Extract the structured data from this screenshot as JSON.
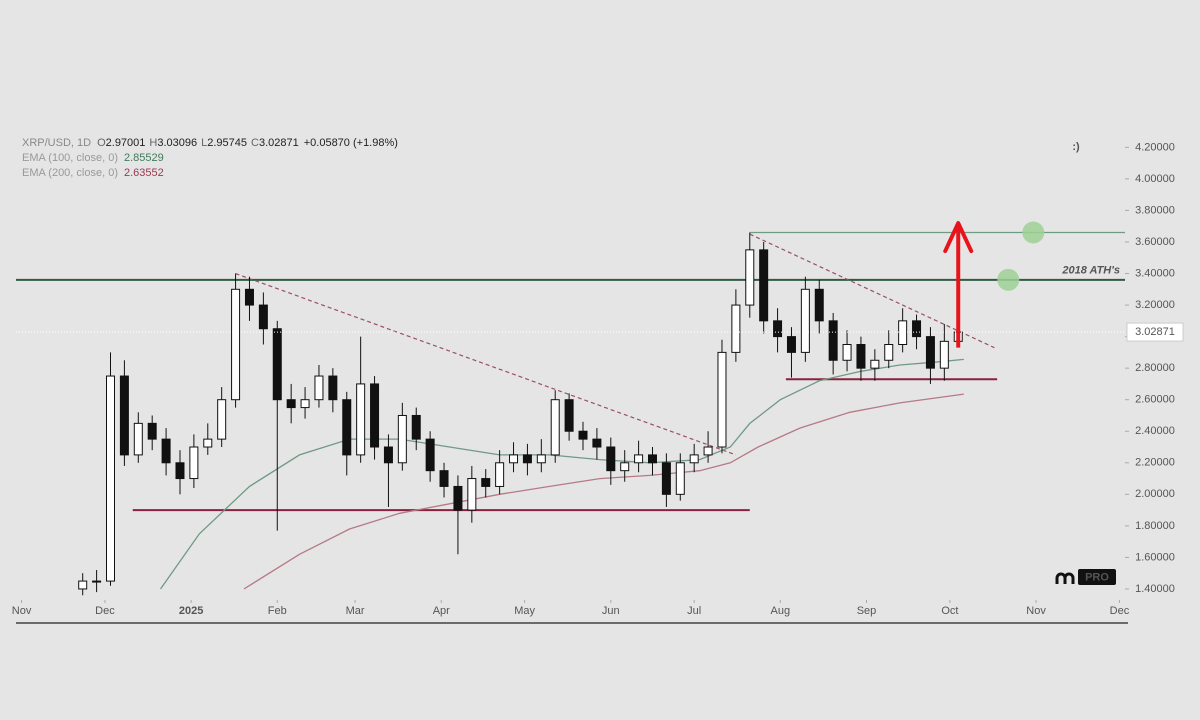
{
  "chart_data": {
    "type": "candlestick",
    "legend": {
      "symbol": "XRP/USD, 1D",
      "open_prefix": "O",
      "high_prefix": "H",
      "low_prefix": "L",
      "close_prefix": "C",
      "change": "+0.05870 (+1.98%)"
    },
    "candles": {
      "x": [
        22,
        27,
        32,
        37,
        42,
        47,
        52,
        57,
        62,
        67,
        72,
        77,
        82,
        87,
        92,
        97,
        102,
        107,
        112,
        117,
        122,
        127,
        132,
        137,
        142,
        147,
        152,
        157,
        162,
        167,
        172,
        177,
        182,
        187,
        192,
        197,
        202,
        207,
        212,
        217,
        222,
        227,
        232,
        237,
        242,
        247,
        252,
        257,
        262,
        267,
        272,
        277,
        282,
        287,
        292,
        297,
        302,
        307,
        312,
        317,
        322,
        327,
        332,
        337
      ],
      "open": [
        1.4,
        1.45,
        1.45,
        2.75,
        2.25,
        2.45,
        2.35,
        2.2,
        2.1,
        2.3,
        2.35,
        2.6,
        3.3,
        3.2,
        3.05,
        2.6,
        2.55,
        2.6,
        2.75,
        2.6,
        2.25,
        2.7,
        2.3,
        2.2,
        2.5,
        2.35,
        2.15,
        2.05,
        1.9,
        2.1,
        2.05,
        2.2,
        2.25,
        2.2,
        2.25,
        2.6,
        2.4,
        2.35,
        2.3,
        2.15,
        2.2,
        2.25,
        2.2,
        2.0,
        2.2,
        2.25,
        2.3,
        2.9,
        3.2,
        3.55,
        3.1,
        3.0,
        2.9,
        3.3,
        3.1,
        2.85,
        2.95,
        2.8,
        2.85,
        2.95,
        3.1,
        3.0,
        2.8,
        2.97001
      ],
      "high": [
        1.5,
        1.52,
        2.9,
        2.85,
        2.52,
        2.5,
        2.42,
        2.28,
        2.38,
        2.45,
        2.68,
        3.4,
        3.38,
        3.28,
        3.1,
        2.7,
        2.68,
        2.82,
        2.8,
        2.65,
        3.0,
        2.75,
        2.38,
        2.58,
        2.55,
        2.4,
        2.2,
        2.12,
        2.18,
        2.16,
        2.28,
        2.33,
        2.32,
        2.35,
        2.66,
        2.64,
        2.46,
        2.42,
        2.36,
        2.28,
        2.34,
        2.3,
        2.26,
        2.26,
        2.32,
        2.4,
        2.98,
        3.3,
        3.66,
        3.6,
        3.18,
        3.06,
        3.38,
        3.36,
        3.15,
        3.04,
        3.0,
        2.92,
        3.04,
        3.18,
        3.14,
        3.06,
        3.08,
        3.03096
      ],
      "low": [
        1.36,
        1.38,
        1.42,
        2.18,
        2.2,
        2.28,
        2.12,
        2.0,
        2.04,
        2.25,
        2.3,
        2.55,
        3.1,
        2.95,
        1.77,
        2.45,
        2.48,
        2.55,
        2.52,
        2.12,
        2.2,
        2.22,
        1.92,
        2.15,
        2.28,
        2.08,
        1.98,
        1.62,
        1.82,
        1.98,
        2.0,
        2.14,
        2.12,
        2.14,
        2.2,
        2.34,
        2.28,
        2.22,
        2.06,
        2.08,
        2.14,
        2.12,
        1.92,
        1.96,
        2.14,
        2.2,
        2.26,
        2.84,
        3.12,
        3.02,
        2.9,
        2.74,
        2.84,
        3.02,
        2.76,
        2.78,
        2.72,
        2.72,
        2.8,
        2.9,
        2.92,
        2.7,
        2.72,
        2.95745
      ],
      "close": [
        1.45,
        1.45,
        2.75,
        2.25,
        2.45,
        2.35,
        2.2,
        2.1,
        2.3,
        2.35,
        2.6,
        3.3,
        3.2,
        3.05,
        2.6,
        2.55,
        2.6,
        2.75,
        2.6,
        2.25,
        2.7,
        2.3,
        2.2,
        2.5,
        2.35,
        2.15,
        2.05,
        1.9,
        2.1,
        2.05,
        2.2,
        2.25,
        2.2,
        2.25,
        2.6,
        2.4,
        2.35,
        2.3,
        2.15,
        2.2,
        2.25,
        2.2,
        2.0,
        2.2,
        2.25,
        2.3,
        2.9,
        3.2,
        3.55,
        3.1,
        3.0,
        2.9,
        3.3,
        3.1,
        2.85,
        2.95,
        2.8,
        2.85,
        2.95,
        3.1,
        3.0,
        2.8,
        2.97,
        3.02871
      ],
      "up_color": "#ffffff",
      "down_color": "#111111"
    },
    "series": [
      {
        "name": "EMA (100, close, 0)",
        "color": "#6f9a84",
        "label_color": "#3e7d5a",
        "x": [
          50,
          64,
          82,
          100,
          118,
          136,
          154,
          172,
          190,
          208,
          226,
          244,
          255,
          262,
          273,
          287,
          302,
          316,
          330,
          339
        ],
        "values": [
          1.4,
          1.75,
          2.05,
          2.25,
          2.35,
          2.35,
          2.3,
          2.25,
          2.25,
          2.22,
          2.2,
          2.22,
          2.3,
          2.45,
          2.6,
          2.72,
          2.78,
          2.82,
          2.84,
          2.85529
        ]
      },
      {
        "name": "EMA (200, close, 0)",
        "color": "#b57a86",
        "label_color": "#9b3a4f",
        "x": [
          80,
          100,
          118,
          136,
          154,
          172,
          190,
          208,
          226,
          244,
          255,
          265,
          280,
          298,
          316,
          339
        ],
        "values": [
          1.4,
          1.62,
          1.78,
          1.88,
          1.94,
          2.0,
          2.05,
          2.1,
          2.12,
          2.15,
          2.2,
          2.3,
          2.42,
          2.52,
          2.58,
          2.63552
        ]
      }
    ],
    "levels": [
      {
        "value": 3.36,
        "x": [
          -2,
          397
        ],
        "color": "#2f5a45",
        "label": "2018 ATH's"
      },
      {
        "value": 3.66,
        "x": [
          262,
          397
        ],
        "color": "#6e9c82"
      },
      {
        "value": 1.9,
        "x": [
          40,
          262
        ],
        "color": "#8a2040"
      },
      {
        "value": 2.73,
        "x": [
          275,
          351
        ],
        "color": "#8a2040"
      }
    ],
    "trendlines": [
      {
        "x": [
          77,
          257
        ],
        "y": [
          3.4,
          2.25
        ],
        "color": "#9b5060"
      },
      {
        "x": [
          262,
          350
        ],
        "y": [
          3.65,
          2.93
        ],
        "color": "#9b5060"
      }
    ],
    "arrow": {
      "x": 337,
      "y": [
        2.93,
        3.72
      ],
      "color": "#e8141c"
    },
    "circles": {
      "x": [
        364,
        355
      ],
      "y": [
        3.66,
        3.36
      ],
      "color": "#9fd197"
    },
    "note": ":)",
    "brand": "PRO",
    "xlim": [
      -2,
      397
    ],
    "xticks": [
      {
        "value": 0,
        "label": "Nov"
      },
      {
        "value": 30,
        "label": "Dec"
      },
      {
        "value": 61,
        "label": "2025"
      },
      {
        "value": 92,
        "label": "Feb"
      },
      {
        "value": 120,
        "label": "Mar"
      },
      {
        "value": 151,
        "label": "Apr"
      },
      {
        "value": 181,
        "label": "May"
      },
      {
        "value": 212,
        "label": "Jun"
      },
      {
        "value": 242,
        "label": "Jul"
      },
      {
        "value": 273,
        "label": "Aug"
      },
      {
        "value": 304,
        "label": "Sep"
      },
      {
        "value": 334,
        "label": "Oct"
      },
      {
        "value": 365,
        "label": "Nov"
      },
      {
        "value": 395,
        "label": "Dec"
      }
    ],
    "ylim": [
      1.33,
      4.31
    ],
    "yticks": [
      {
        "value": 1.4,
        "label": "1.40000"
      },
      {
        "value": 1.6,
        "label": "1.60000"
      },
      {
        "value": 1.8,
        "label": "1.80000"
      },
      {
        "value": 2.0,
        "label": "2.00000"
      },
      {
        "value": 2.2,
        "label": "2.20000"
      },
      {
        "value": 2.4,
        "label": "2.40000"
      },
      {
        "value": 2.6,
        "label": "2.60000"
      },
      {
        "value": 2.8,
        "label": "2.80000"
      },
      {
        "value": 3.0,
        "label": "3.00000"
      },
      {
        "value": 3.2,
        "label": "3.20000"
      },
      {
        "value": 3.4,
        "label": "3.40000"
      },
      {
        "value": 3.6,
        "label": "3.60000"
      },
      {
        "value": 3.8,
        "label": "3.80000"
      },
      {
        "value": 4.0,
        "label": "4.00000"
      },
      {
        "value": 4.2,
        "label": "4.20000"
      }
    ]
  }
}
